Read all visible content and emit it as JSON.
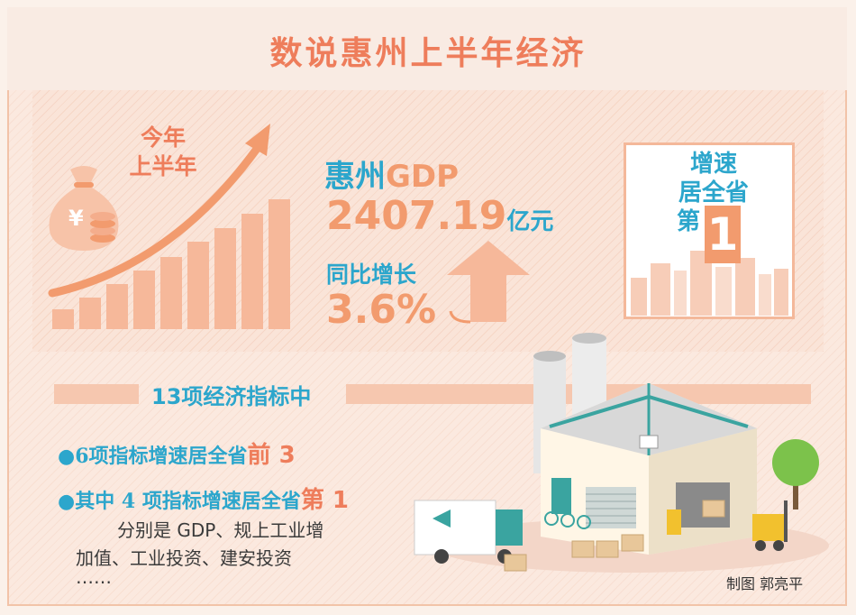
{
  "title": "数说惠州上半年经济",
  "period_label_line1": "今年",
  "period_label_line2": "上半年",
  "currency_symbol": "¥",
  "gdp": {
    "label_cn": "惠州",
    "label_en": "GDP",
    "value": "2407.19",
    "unit": "亿元",
    "growth_label": "同比增长",
    "growth_value": "3.6%"
  },
  "rank": {
    "line1": "增速",
    "line2": "居全省",
    "line3": "第",
    "number": "1"
  },
  "indicators": {
    "heading": "13项经济指标中",
    "bullet1_text": "6项指标增速居全省",
    "bullet1_highlight": "前 3",
    "bullet2_text": "其中 4 项指标增速居全省",
    "bullet2_highlight": "第 1",
    "detail_line1": "分别是 GDP、规上工业增",
    "detail_line2": "加值、工业投资、建安投资",
    "detail_line3": "……"
  },
  "credit": "制图  郭亮平",
  "colors": {
    "orange": "#ee7d5b",
    "peach": "#f29b6e",
    "blue": "#2ca6cc"
  }
}
